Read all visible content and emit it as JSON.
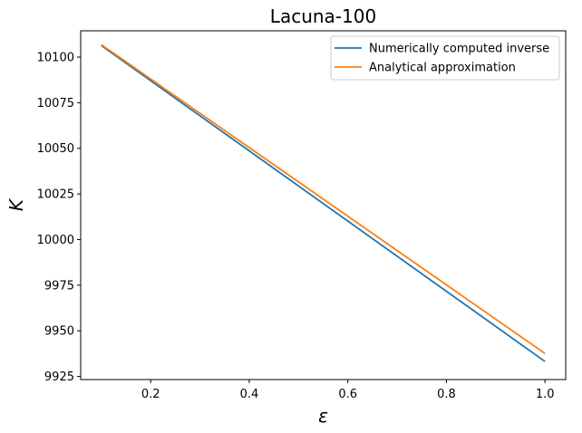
{
  "chart_data": {
    "type": "line",
    "title": "Lacuna-100",
    "xlabel": "ε",
    "ylabel": "K",
    "xlim": [
      0.058,
      1.042
    ],
    "ylim": [
      9923.3,
      10114.4
    ],
    "xticks": [
      0.2,
      0.4,
      0.6,
      0.8,
      1.0
    ],
    "xtick_labels": [
      "0.2",
      "0.4",
      "0.6",
      "0.8",
      "1.0"
    ],
    "yticks": [
      9925,
      9950,
      9975,
      10000,
      10025,
      10050,
      10075,
      10100
    ],
    "ytick_labels": [
      "9925",
      "9950",
      "9975",
      "10000",
      "10025",
      "10050",
      "10075",
      "10100"
    ],
    "grid": false,
    "legend_position": "top-right",
    "series": [
      {
        "name": "Numerically computed inverse",
        "color": "#1f77b4",
        "x": [
          0.1,
          1.0
        ],
        "y": [
          10106.3,
          9933.2
        ]
      },
      {
        "name": "Analytical approximation",
        "color": "#ff7f0e",
        "x": [
          0.1,
          1.0
        ],
        "y": [
          10106.8,
          9937.6
        ]
      }
    ]
  }
}
